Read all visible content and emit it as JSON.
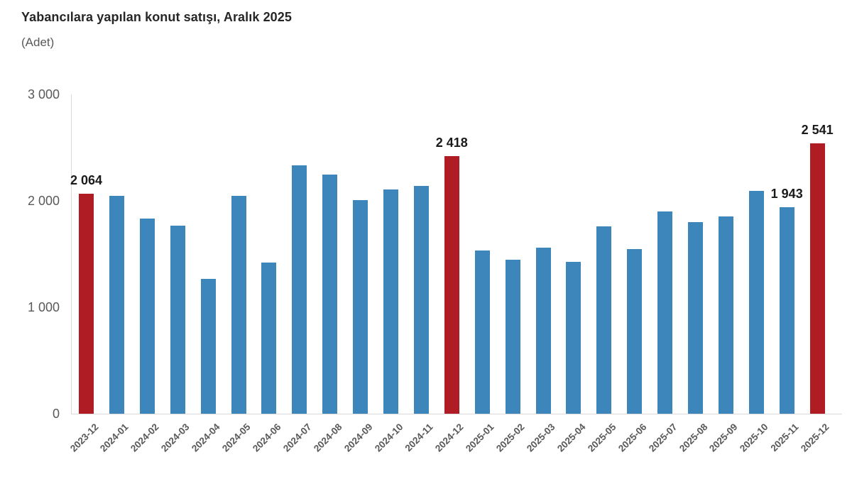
{
  "header": {
    "title": "Yabancılara yapılan konut satışı, Aralık 2025",
    "subtitle": "(Adet)"
  },
  "colors": {
    "bar_blue": "#3c86bb",
    "bar_red": "#b01c23",
    "axis_line": "#d9d9d9",
    "axis_text": "#595959",
    "value_label_text": "#1a1a1a",
    "title_text": "#262626"
  },
  "chart_data": {
    "type": "bar",
    "title": "Yabancılara yapılan konut satışı, Aralık 2025",
    "unit_label": "(Adet)",
    "xlabel": "",
    "ylabel": "Adet",
    "ylim": [
      0,
      3000
    ],
    "grid": false,
    "legend": false,
    "yticks": [
      {
        "value": 0,
        "label": "0"
      },
      {
        "value": 1000,
        "label": "1 000"
      },
      {
        "value": 2000,
        "label": "2 000"
      },
      {
        "value": 3000,
        "label": "3 000"
      }
    ],
    "categories": [
      "2023-12",
      "2024-01",
      "2024-02",
      "2024-03",
      "2024-04",
      "2024-05",
      "2024-06",
      "2024-07",
      "2024-08",
      "2024-09",
      "2024-10",
      "2024-11",
      "2024-12",
      "2025-01",
      "2025-02",
      "2025-03",
      "2025-04",
      "2025-05",
      "2025-06",
      "2025-07",
      "2025-08",
      "2025-09",
      "2025-10",
      "2025-11",
      "2025-12"
    ],
    "values": [
      2064,
      2050,
      1835,
      1765,
      1265,
      2050,
      1420,
      2335,
      2245,
      2010,
      2110,
      2140,
      2418,
      1535,
      1445,
      1560,
      1425,
      1760,
      1545,
      1900,
      1800,
      1855,
      2095,
      1943,
      2541
    ],
    "highlight_indices": [
      0,
      12,
      24
    ],
    "value_labels": {
      "0": "2 064",
      "12": "2 418",
      "23": "1 943",
      "24": "2 541"
    },
    "bar_color_default": "#3c86bb",
    "bar_color_highlight": "#b01c23"
  }
}
